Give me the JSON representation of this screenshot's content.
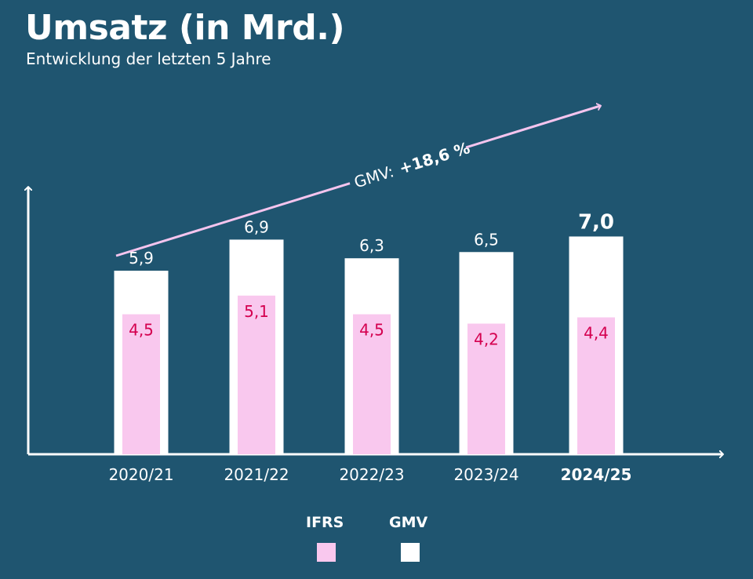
{
  "header": {
    "title": "Umsatz (in Mrd.)",
    "subtitle": "Entwicklung der letzten 5 Jahre"
  },
  "annotation": {
    "label": "GMV:",
    "value": "+18,6 %"
  },
  "legend": {
    "ifrs": "IFRS",
    "gmv": "GMV"
  },
  "colors": {
    "background": "#1f5570",
    "gmv": "#ffffff",
    "ifrs": "#f9c8ee",
    "ifrs_text": "#d4004f",
    "arrow": "#f4c4ee"
  },
  "chart_data": {
    "type": "bar",
    "categories": [
      "2020/21",
      "2021/22",
      "2022/23",
      "2023/24",
      "2024/25"
    ],
    "highlight_category": "2024/25",
    "series": [
      {
        "name": "GMV",
        "values": [
          5.9,
          6.9,
          6.3,
          6.5,
          7.0
        ],
        "labels": [
          "5,9",
          "6,9",
          "6,3",
          "6,5",
          "7,0"
        ]
      },
      {
        "name": "IFRS",
        "values": [
          4.5,
          5.1,
          4.5,
          4.2,
          4.4
        ],
        "labels": [
          "4,5",
          "5,1",
          "4,5",
          "4,2",
          "4,4"
        ]
      }
    ],
    "ylim": [
      0,
      8.6
    ],
    "grid": false,
    "legend_position": "bottom-center"
  }
}
